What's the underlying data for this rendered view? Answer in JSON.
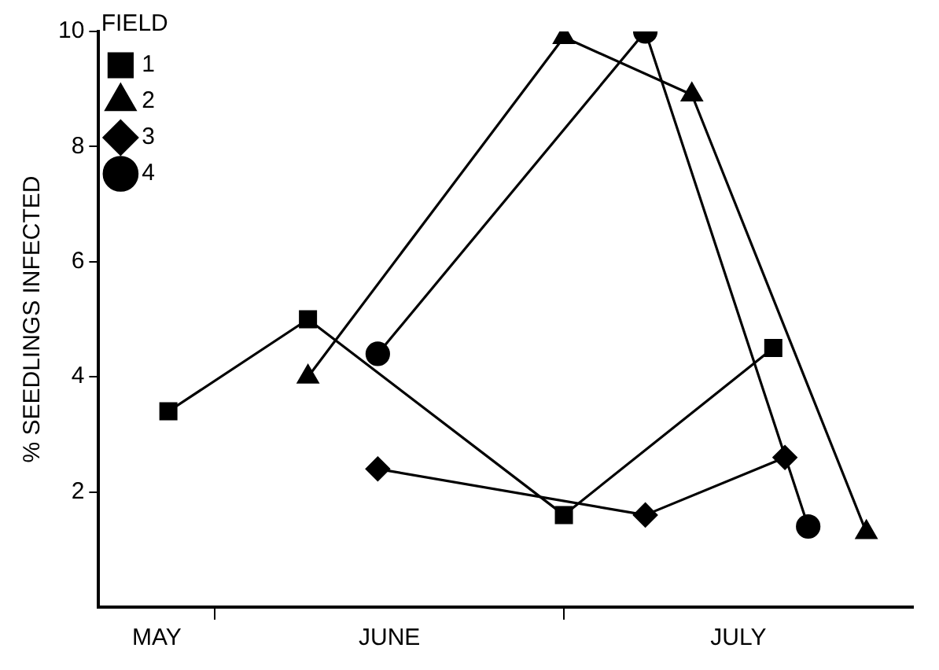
{
  "chart_data": {
    "type": "line",
    "ylabel": "% SEEDLINGS INFECTED",
    "legend_title": "FIELD",
    "xlim": [
      "--05-22",
      "--07-31"
    ],
    "xticks": [
      {
        "value": "--05-27",
        "label": "MAY"
      },
      {
        "value": "--06-01",
        "label": null
      },
      {
        "value": "--06-16",
        "label": "JUNE"
      },
      {
        "value": "--07-01",
        "label": null
      },
      {
        "value": "--07-16",
        "label": "JULY"
      }
    ],
    "ylim": [
      0,
      10
    ],
    "yticks": [
      2,
      4,
      6,
      8,
      10
    ],
    "grid": false,
    "legend": "top left",
    "line_style": "solid",
    "series": [
      {
        "name": "1",
        "color": "#000000",
        "marker": "square",
        "x": [
          "--05-28",
          "--06-09",
          "--07-01",
          "--07-19"
        ],
        "values": [
          3.4,
          5.0,
          1.6,
          4.5
        ]
      },
      {
        "name": "2",
        "color": "#000000",
        "marker": "triangle",
        "x": [
          "--06-09",
          "--07-01",
          "--07-12",
          "--07-27"
        ],
        "values": [
          4.0,
          9.9,
          8.9,
          1.3
        ]
      },
      {
        "name": "3",
        "color": "#000000",
        "marker": "diamond",
        "x": [
          "--06-15",
          "--07-08",
          "--07-20"
        ],
        "values": [
          2.4,
          1.6,
          2.6
        ]
      },
      {
        "name": "4",
        "color": "#000000",
        "marker": "circle",
        "x": [
          "--06-15",
          "--07-08",
          "--07-22"
        ],
        "values": [
          4.4,
          10.0,
          1.4
        ]
      }
    ]
  }
}
